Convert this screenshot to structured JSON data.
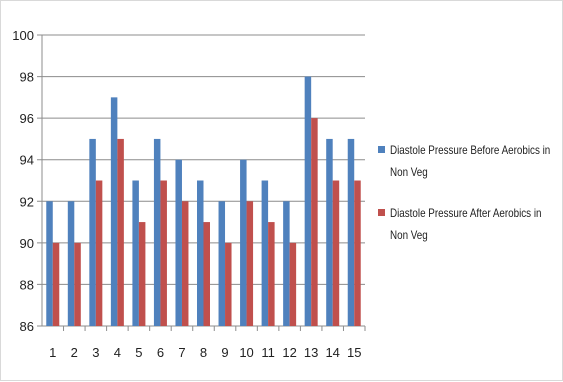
{
  "chart_data": {
    "type": "bar",
    "categories": [
      "1",
      "2",
      "3",
      "4",
      "5",
      "6",
      "7",
      "8",
      "9",
      "10",
      "11",
      "12",
      "13",
      "14",
      "15"
    ],
    "series": [
      {
        "name": "Diastole Pressure Before Aerobics in Non Veg",
        "color": "#4f81bd",
        "values": [
          92,
          92,
          95,
          97,
          93,
          95,
          94,
          93,
          92,
          94,
          93,
          92,
          98,
          95,
          95
        ]
      },
      {
        "name": "Diastole Pressure After Aerobics in Non Veg",
        "color": "#c0504d",
        "values": [
          90,
          90,
          93,
          95,
          91,
          93,
          92,
          91,
          90,
          92,
          91,
          90,
          96,
          93,
          93
        ]
      }
    ],
    "ylim": [
      86,
      100
    ],
    "yticks": [
      "86",
      "88",
      "90",
      "92",
      "94",
      "96",
      "98",
      "100"
    ],
    "grid": true,
    "legend_position": "right"
  }
}
